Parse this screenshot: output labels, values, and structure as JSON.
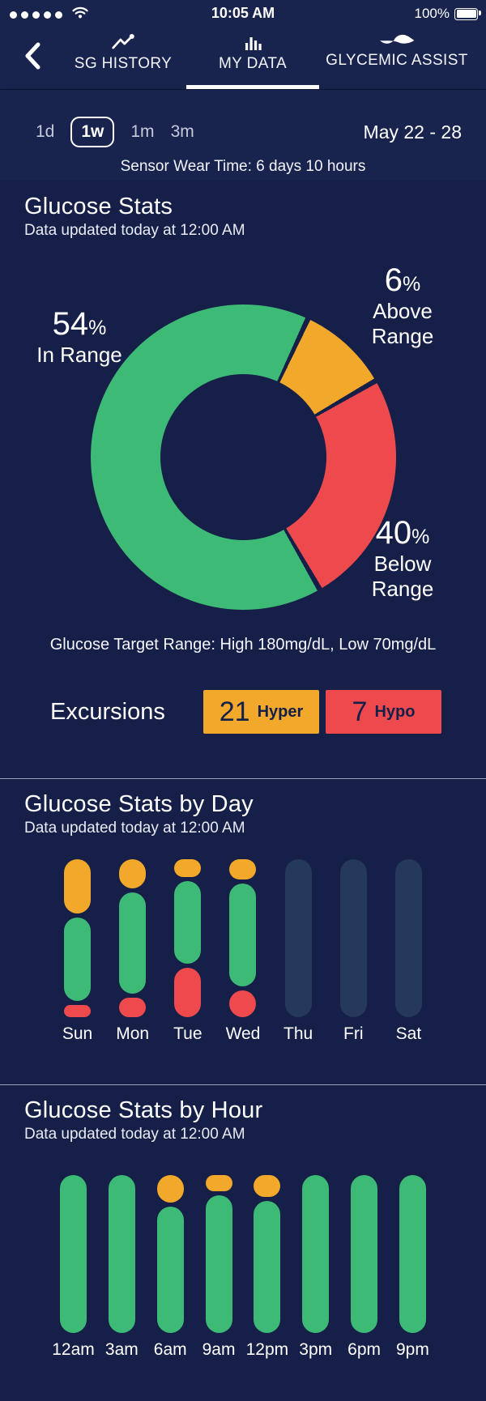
{
  "status_bar": {
    "time": "10:05 AM",
    "battery": "100%"
  },
  "nav": {
    "tabs": [
      {
        "label": "SG HISTORY",
        "icon": "trend-line-icon",
        "active": false
      },
      {
        "label": "MY DATA",
        "icon": "bar-chart-icon",
        "active": true
      },
      {
        "label": "GLYCEMIC ASSIST",
        "icon": "wave-icon",
        "active": false
      }
    ]
  },
  "range_selector": {
    "options": [
      {
        "label": "1d",
        "selected": false
      },
      {
        "label": "1w",
        "selected": true
      },
      {
        "label": "1m",
        "selected": false
      },
      {
        "label": "3m",
        "selected": false
      }
    ],
    "date_range": "May 22 - 28",
    "sensor_wear_time": "Sensor Wear Time: 6 days 10 hours"
  },
  "glucose_stats": {
    "title": "Glucose Stats",
    "subtitle": "Data updated today at 12:00 AM",
    "donut_labels": {
      "in": {
        "value": "54",
        "suffix": "%",
        "line1": "In Range"
      },
      "above": {
        "value": "6",
        "suffix": "%",
        "line1": "Above",
        "line2": "Range"
      },
      "below": {
        "value": "40",
        "suffix": "%",
        "line1": "Below",
        "line2": "Range"
      }
    },
    "target_range": "Glucose Target Range: High 180mg/dL, Low 70mg/dL",
    "excursions": {
      "label": "Excursions",
      "hyper": {
        "value": "21",
        "label": "Hyper"
      },
      "hypo": {
        "value": "7",
        "label": "Hypo"
      }
    }
  },
  "by_day": {
    "title": "Glucose Stats by Day",
    "subtitle": "Data updated today at 12:00 AM"
  },
  "by_hour": {
    "title": "Glucose Stats by Hour",
    "subtitle": "Data updated today at 12:00 AM"
  },
  "colors": {
    "background": "#151F48",
    "header_background": "#19244E",
    "in_range": "#3DBA76",
    "above_range": "#F2A82A",
    "below_range": "#EE4A4E",
    "empty_bar": "#24395C",
    "badge_text": "#14204A"
  },
  "chart_data": [
    {
      "name": "glucose-distribution-donut",
      "type": "pie",
      "title": "Glucose Stats",
      "series": [
        {
          "name": "In Range",
          "value": 54,
          "color_key": "in_range"
        },
        {
          "name": "Above Range",
          "value": 6,
          "color_key": "above_range"
        },
        {
          "name": "Below Range",
          "value": 40,
          "color_key": "below_range"
        }
      ],
      "unit": "percent",
      "legend_position": "around-chart",
      "gradient_stops": [
        {
          "color_key": "in_range",
          "from": 0,
          "to": 24
        },
        {
          "color_key": "gap",
          "from": 24,
          "to": 26
        },
        {
          "color_key": "above_range",
          "from": 26,
          "to": 59
        },
        {
          "color_key": "gap",
          "from": 59,
          "to": 61
        },
        {
          "color_key": "below_range",
          "from": 61,
          "to": 149
        },
        {
          "color_key": "gap",
          "from": 149,
          "to": 151
        },
        {
          "color_key": "in_range",
          "from": 151,
          "to": 360
        }
      ]
    },
    {
      "name": "glucose-by-day",
      "type": "bar",
      "stacked": true,
      "title": "Glucose Stats by Day",
      "categories": [
        "Sun",
        "Mon",
        "Tue",
        "Wed",
        "Thu",
        "Fri",
        "Sat"
      ],
      "series": [
        {
          "name": "Above Range",
          "color_key": "above_range",
          "values": [
            36,
            18,
            11,
            13,
            0,
            0,
            0
          ]
        },
        {
          "name": "In Range",
          "color_key": "in_range",
          "values": [
            56,
            62,
            52,
            65,
            0,
            0,
            0
          ]
        },
        {
          "name": "Below Range",
          "color_key": "below_range",
          "values": [
            8,
            12,
            31,
            17,
            0,
            0,
            0
          ]
        },
        {
          "name": "No Data",
          "color_key": "empty_bar",
          "values": [
            0,
            0,
            0,
            0,
            100,
            100,
            100
          ]
        }
      ],
      "note": "Segment sizes estimated from bar proportions; no numeric labels shown in chart.",
      "grid": false
    },
    {
      "name": "glucose-by-hour",
      "type": "bar",
      "stacked": true,
      "title": "Glucose Stats by Hour",
      "categories": [
        "12am",
        "3am",
        "6am",
        "9am",
        "12pm",
        "3pm",
        "6pm",
        "9pm"
      ],
      "series": [
        {
          "name": "Above Range",
          "color_key": "above_range",
          "values": [
            0,
            0,
            17,
            10,
            14,
            0,
            0,
            0
          ]
        },
        {
          "name": "In Range",
          "color_key": "in_range",
          "values": [
            100,
            100,
            79,
            87,
            83,
            100,
            100,
            100
          ]
        },
        {
          "name": "Below Range",
          "color_key": "below_range",
          "values": [
            0,
            0,
            0,
            0,
            0,
            0,
            0,
            0
          ]
        },
        {
          "name": "No Data",
          "color_key": "empty_bar",
          "values": [
            0,
            0,
            0,
            0,
            0,
            0,
            0,
            0
          ]
        }
      ],
      "note": "Segment sizes estimated from bar proportions; no numeric labels shown in chart.",
      "grid": false
    }
  ]
}
